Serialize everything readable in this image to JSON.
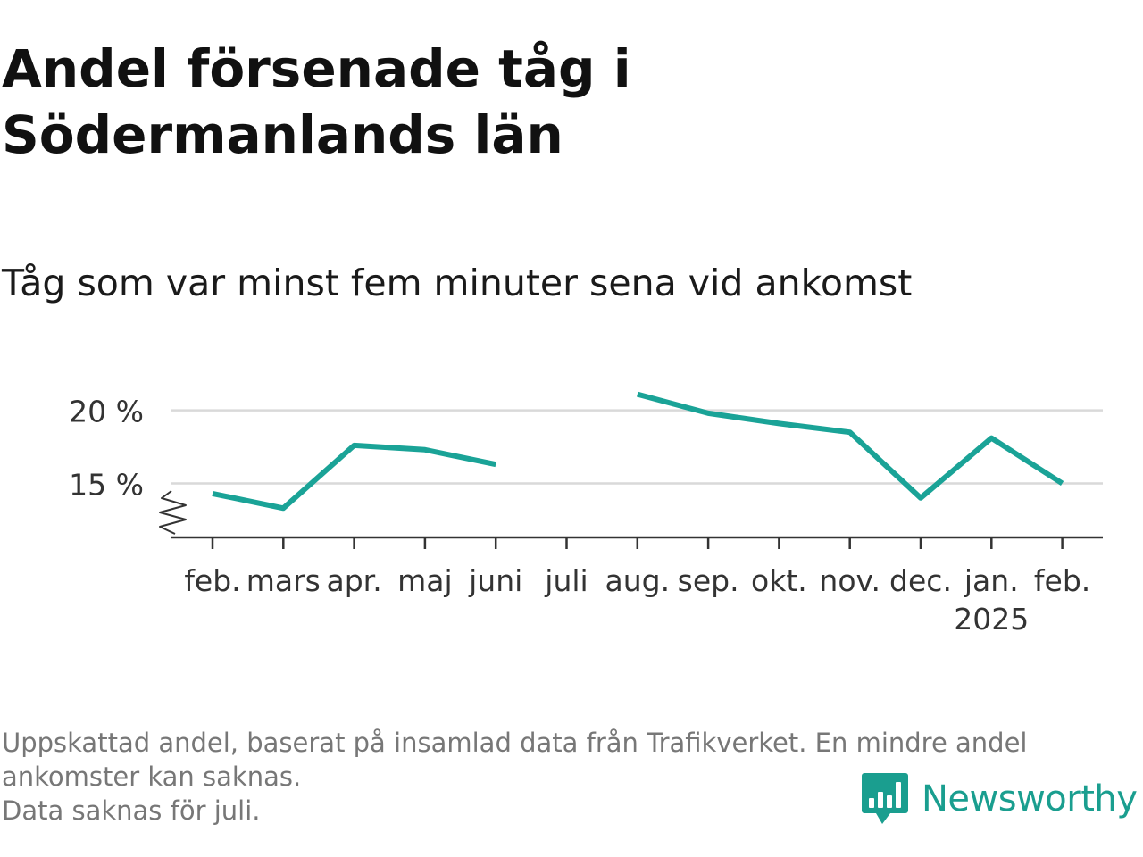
{
  "header": {
    "title": "Andel försenade tåg i Södermanlands län",
    "subtitle": "Tåg som var minst fem minuter sena vid ankomst"
  },
  "footer": {
    "note_line1": "Uppskattad andel, baserat på insamlad data från Trafikverket. En mindre andel ankomster kan saknas.",
    "note_line2": "Data saknas för juli.",
    "brand_name": "Newsworthy"
  },
  "colors": {
    "line": "#1aa397",
    "grid": "#d9d9d9",
    "axis": "#333333",
    "brand": "#1a9e8f"
  },
  "chart_data": {
    "type": "line",
    "title": "Andel försenade tåg i Södermanlands län",
    "subtitle": "Tåg som var minst fem minuter sena vid ankomst",
    "categories": [
      "feb.",
      "mars",
      "apr.",
      "maj",
      "juni",
      "juli",
      "aug.",
      "sep.",
      "okt.",
      "nov.",
      "dec.",
      "jan.",
      "feb."
    ],
    "year_label": {
      "category_index": 11,
      "text": "2025"
    },
    "series": [
      {
        "values": [
          14.3,
          13.3,
          17.6,
          17.3,
          16.3,
          null,
          21.1,
          19.8,
          19.1,
          18.5,
          14.0,
          18.1,
          15.0
        ]
      }
    ],
    "y_ticks": [
      15,
      20
    ],
    "y_tick_labels": [
      "15 %",
      "20 %"
    ],
    "ylim": [
      11.3,
      21.2
    ],
    "y_axis_break": true,
    "grid": true,
    "legend": "none",
    "xlabel": "",
    "ylabel": ""
  }
}
